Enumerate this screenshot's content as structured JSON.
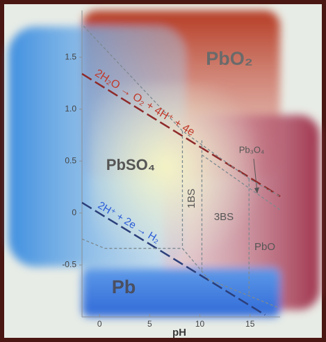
{
  "chart_data": {
    "type": "line",
    "x_label": "pH",
    "xlim": [
      -1.75,
      18
    ],
    "ylim": [
      -1,
      1.95
    ],
    "xticks": [
      0,
      5,
      10,
      15
    ],
    "yticks": [
      -0.5,
      0,
      0.5,
      {
        "value": 1,
        "label": "1.0"
      },
      1.5
    ],
    "series": [
      {
        "color": "#8e2a2a",
        "dash": "long",
        "x": [
          -1.75,
          18
        ],
        "values": [
          1.34,
          0.16
        ]
      },
      {
        "color": "#2b3f7a",
        "dash": "long",
        "x": [
          -1.75,
          16.5
        ],
        "values": [
          0.1,
          -0.98
        ]
      },
      {
        "color": "#7d8a90",
        "dash": "short",
        "x": [
          -1.6,
          8.26,
          15.07,
          18
        ],
        "values": [
          1.8,
          0.79,
          0.32,
          0.16
        ]
      },
      {
        "color": "#7d8a90",
        "dash": "short",
        "x": [
          10.2,
          18
        ],
        "values": [
          0.56,
          0.03
        ]
      },
      {
        "color": "#7d8a90",
        "dash": "short",
        "x": [
          -1.75,
          0.5,
          8.26,
          10.9,
          17.8
        ],
        "values": [
          -0.25,
          -0.34,
          -0.34,
          -0.64,
          -0.91
        ]
      },
      {
        "color": "#7d8a90",
        "dash": "short",
        "x": [
          8.26,
          8.26
        ],
        "values": [
          0.79,
          -0.34
        ]
      },
      {
        "color": "#7d8a90",
        "dash": "short",
        "x": [
          10.2,
          10.2
        ],
        "values": [
          0.7,
          -0.57
        ]
      },
      {
        "color": "#7d8a90",
        "dash": "short",
        "x": [
          14.9,
          14.9
        ],
        "values": [
          0.33,
          -0.78
        ]
      }
    ],
    "annotations": [
      "PbO₂",
      "PbSO₄",
      "Pb",
      "1BS",
      "3BS",
      "PbO",
      "Pb₃O₄",
      "2H₂O → O₂ + 4H⁺ + 4e",
      "2H⁺ + 2e → H₂"
    ]
  }
}
